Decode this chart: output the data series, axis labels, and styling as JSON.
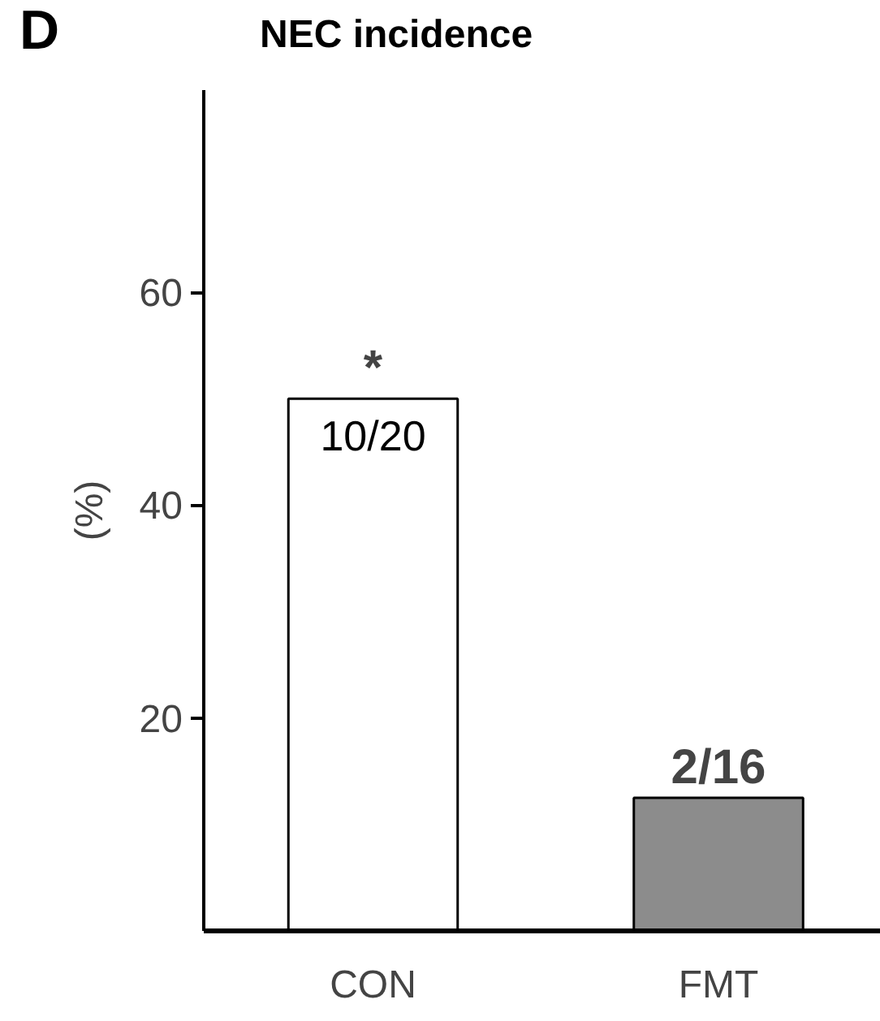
{
  "chart_data": {
    "type": "bar",
    "title": "NEC incidence",
    "ylabel": "(%)",
    "categories": [
      "CON",
      "FMT"
    ],
    "values": [
      50,
      12.5
    ],
    "colors": [
      "#ffffff",
      "#8c8c8c"
    ],
    "ylim": [
      0,
      79
    ],
    "yticks": [
      20,
      40,
      60
    ],
    "grid": false,
    "annotations": [
      "D",
      {
        "text": "*",
        "x": "CON",
        "y": 50
      },
      {
        "text": "10/20",
        "x": "CON",
        "y": 50
      },
      {
        "text": "2/16",
        "x": "FMT",
        "y": 12.5
      }
    ]
  }
}
